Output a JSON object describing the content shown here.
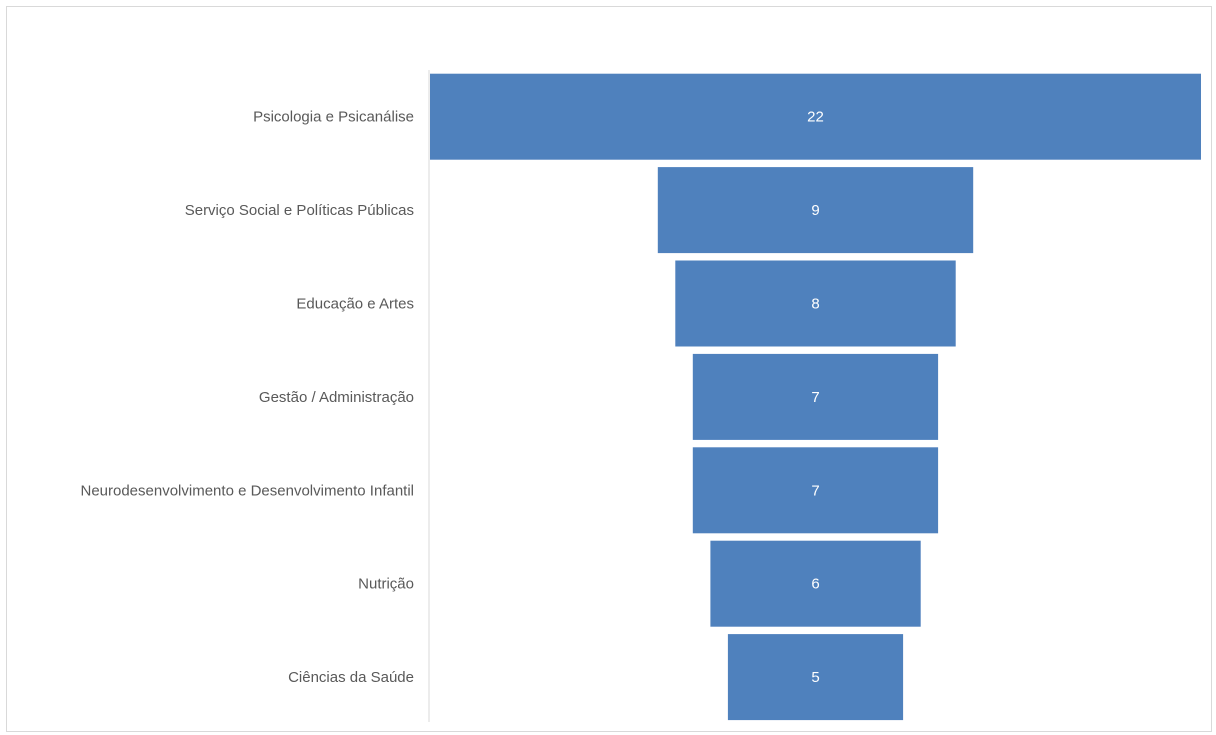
{
  "chart_data": {
    "type": "bar",
    "subtype": "funnel",
    "categories": [
      "Psicologia e Psicanálise",
      "Serviço Social e Políticas Públicas",
      "Educação e Artes",
      "Gestão / Administração",
      "Neurodesenvolvimento e Desenvolvimento Infantil",
      "Nutrição",
      "Ciências da Saúde"
    ],
    "values": [
      22,
      9,
      8,
      7,
      7,
      6,
      5
    ],
    "data_labels": [
      "22",
      "9",
      "8",
      "7",
      "7",
      "6",
      "5"
    ],
    "title": "",
    "xlabel": "",
    "ylabel": "",
    "xlim": [
      0,
      22
    ],
    "grid": false,
    "legend": "none",
    "colors": {
      "bar": "#4f81bd",
      "category_text": "#595959",
      "value_text": "#ffffff",
      "axis_line": "#d9d9d9",
      "border": "#d9d9d9"
    }
  }
}
